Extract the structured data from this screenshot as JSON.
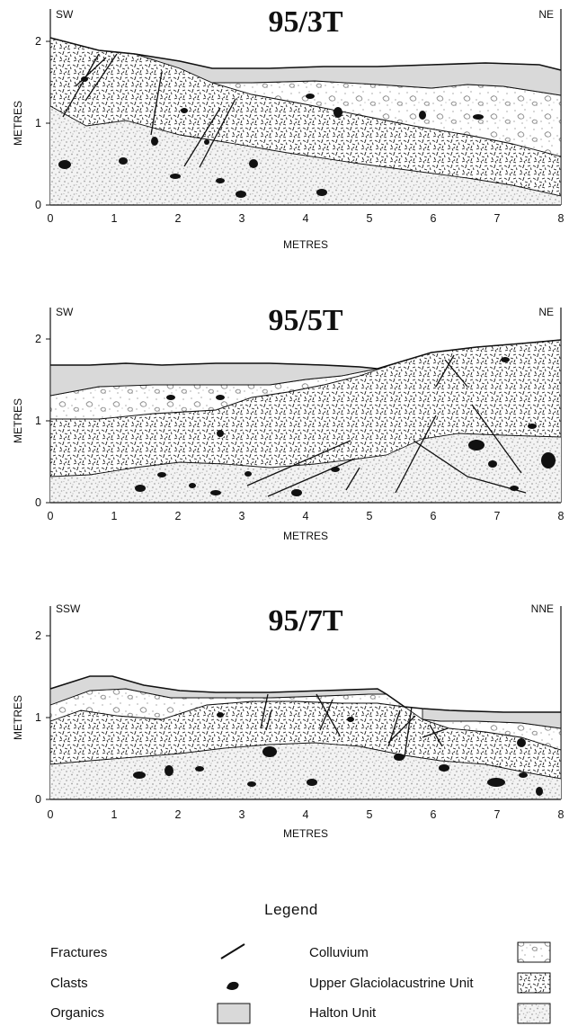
{
  "sections": [
    {
      "title": "95/3T",
      "left_direction": "SW",
      "right_direction": "NE",
      "ylabel": "METRES",
      "xlabel": "METRES",
      "x_ticks": [
        "0",
        "1",
        "2",
        "3",
        "4",
        "5",
        "6",
        "7",
        "8"
      ],
      "y_ticks": [
        "0",
        "1",
        "2"
      ]
    },
    {
      "title": "95/5T",
      "left_direction": "SW",
      "right_direction": "NE",
      "ylabel": "METRES",
      "xlabel": "METRES",
      "x_ticks": [
        "0",
        "1",
        "2",
        "3",
        "4",
        "5",
        "6",
        "7",
        "8"
      ],
      "y_ticks": [
        "0",
        "1",
        "2"
      ]
    },
    {
      "title": "95/7T",
      "left_direction": "SSW",
      "right_direction": "NNE",
      "ylabel": "METRES",
      "xlabel": "METRES",
      "x_ticks": [
        "0",
        "1",
        "2",
        "3",
        "4",
        "5",
        "6",
        "7",
        "8"
      ],
      "y_ticks": [
        "0",
        "1",
        "2"
      ]
    }
  ],
  "legend": {
    "title": "Legend",
    "left_items": [
      {
        "label": "Fractures",
        "symbol": "fracture"
      },
      {
        "label": "Clasts",
        "symbol": "clast"
      },
      {
        "label": "Organics",
        "symbol": "organics"
      }
    ],
    "right_items": [
      {
        "label": "Colluvium",
        "symbol": "colluvium-pattern"
      },
      {
        "label": "Upper Glaciolacustrine Unit",
        "symbol": "upper-glaciolacustrine-pattern"
      },
      {
        "label": "Halton Unit",
        "symbol": "halton-pattern"
      }
    ]
  },
  "colors": {
    "organics": "#d9d9d9",
    "ink": "#111111",
    "halton_speckle": "#9a9a9a"
  }
}
